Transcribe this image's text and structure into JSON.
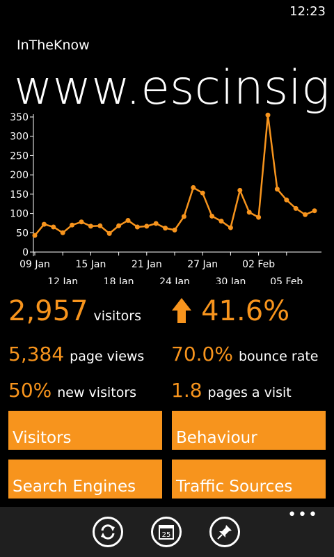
{
  "status": {
    "time": "12:23"
  },
  "app": {
    "name": "InTheKnow"
  },
  "page": {
    "title": "www.escinsight"
  },
  "chart_data": {
    "type": "line",
    "color": "#f7941d",
    "ylim": [
      0,
      350
    ],
    "yticks": [
      0,
      50,
      100,
      150,
      200,
      250,
      300,
      350
    ],
    "x_tick_labels": [
      {
        "label": "09 Jan",
        "index": 0,
        "row": 1
      },
      {
        "label": "12 Jan",
        "index": 3,
        "row": 2
      },
      {
        "label": "15 Jan",
        "index": 6,
        "row": 1
      },
      {
        "label": "18 Jan",
        "index": 9,
        "row": 2
      },
      {
        "label": "21 Jan",
        "index": 12,
        "row": 1
      },
      {
        "label": "24 Jan",
        "index": 15,
        "row": 2
      },
      {
        "label": "27 Jan",
        "index": 18,
        "row": 1
      },
      {
        "label": "30 Jan",
        "index": 21,
        "row": 2
      },
      {
        "label": "02 Feb",
        "index": 24,
        "row": 1
      },
      {
        "label": "05 Feb",
        "index": 27,
        "row": 2
      }
    ],
    "values": [
      43,
      72,
      65,
      50,
      70,
      78,
      67,
      68,
      48,
      68,
      82,
      65,
      67,
      74,
      62,
      57,
      92,
      167,
      153,
      93,
      80,
      63,
      160,
      103,
      90,
      355,
      163,
      135,
      113,
      97,
      107
    ]
  },
  "stats": {
    "visitors": {
      "value": "2,957",
      "label": "visitors"
    },
    "change": {
      "value": "41.6%"
    },
    "page_views": {
      "value": "5,384",
      "label": "page views"
    },
    "bounce": {
      "value": "70.0%",
      "label": "bounce rate"
    },
    "new_visitors": {
      "value": "50%",
      "label": "new visitors"
    },
    "pages_visit": {
      "value": "1.8",
      "label": "pages a visit"
    }
  },
  "tiles": {
    "visitors": "Visitors",
    "behaviour": "Behaviour",
    "search": "Search Engines",
    "traffic": "Traffic Sources"
  },
  "appbar": {
    "calendar_day": "25",
    "more": "•••",
    "icons": [
      "refresh-icon",
      "calendar-icon",
      "pin-icon"
    ]
  }
}
